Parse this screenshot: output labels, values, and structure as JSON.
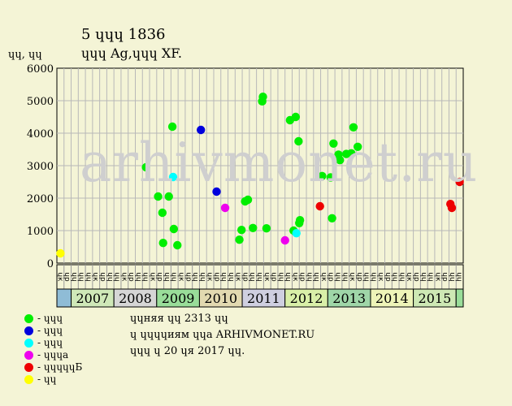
{
  "title": "5 ɥɥɥ 1836",
  "subtitle": "ɥɥɥ Ag,ɥɥɥ XF.",
  "watermark": "arhivmonet.ru",
  "notes": {
    "line1": "ɥɥняя ɥɥ 2313 ɥɥ",
    "line2": "ɥ ɥɥɥɥиям ɥɥа ARHIVMONET.RU",
    "line3": "ɥɥɥ ɥ 20 ɥя 2017 ɥɥ."
  },
  "legend": [
    {
      "label": "- ɥɥɥ",
      "color": "#00ee00"
    },
    {
      "label": "- ɥɥɥ",
      "color": "#0000dd"
    },
    {
      "label": "- ɥɥɥ",
      "color": "#00ffff"
    },
    {
      "label": "- ɥɥɥа",
      "color": "#ee00ee"
    },
    {
      "label": "- ɥɥɥɥɥБ",
      "color": "#ee0000"
    },
    {
      "label": "- ɥɥ",
      "color": "#ffff00"
    }
  ],
  "chart_data": {
    "type": "scatter",
    "title": "5 ɥɥɥ 1836",
    "ylabel": "ɥɥ, ɥɥ",
    "ylim": [
      0,
      6000
    ],
    "yticks": [
      0,
      1000,
      2000,
      3000,
      4000,
      5000,
      6000
    ],
    "grid": true,
    "slot_labels": [
      "ɥк",
      "ɥр",
      "ɥɥ",
      "ɥɥ",
      "ɥɥ",
      "ɥк",
      "ɥр",
      "ɥɥ",
      "ɥɥ",
      "ɥк",
      "ɥр",
      "ɥɥ",
      "ɥɥ",
      "ɥк",
      "ɥр",
      "ɥɥ",
      "ɥɥ",
      "ɥк",
      "ɥр",
      "ɥɥ",
      "ɥɥ",
      "ɥк",
      "ɥр",
      "ɥɥ",
      "ɥɥ",
      "ɥк",
      "ɥр",
      "ɥɥ",
      "ɥɥ",
      "ɥк",
      "ɥр",
      "ɥɥ",
      "ɥɥ",
      "ɥк",
      "ɥр",
      "ɥɥ",
      "ɥɥ",
      "ɥк",
      "ɥр",
      "ɥɥ",
      "ɥɥ",
      "ɥк",
      "ɥр",
      "ɥɥ",
      "ɥɥ",
      "ɥк",
      "ɥр",
      "ɥɥ",
      "ɥɥ",
      "ɥк",
      "ɥр",
      "ɥɥ",
      "ɥɥ",
      "ɥк",
      "ɥр",
      "ɥɥ",
      "ɥɥ"
    ],
    "years": [
      {
        "label": "2007",
        "color": "#cfe8b8"
      },
      {
        "label": "2008",
        "color": "#d6d6d6"
      },
      {
        "label": "2009",
        "color": "#99dd99"
      },
      {
        "label": "2010",
        "color": "#e2d9b0"
      },
      {
        "label": "2011",
        "color": "#cfcfe0"
      },
      {
        "label": "2012",
        "color": "#d9efa8"
      },
      {
        "label": "2013",
        "color": "#9fd6a8"
      },
      {
        "label": "2014",
        "color": "#eef4b8"
      },
      {
        "label": "2015",
        "color": "#cde8b4"
      }
    ],
    "points": [
      {
        "slot": 0.5,
        "value": 300,
        "grade": "yellow"
      },
      {
        "slot": 12.5,
        "value": 2950,
        "grade": "green"
      },
      {
        "slot": 14.2,
        "value": 2050,
        "grade": "green"
      },
      {
        "slot": 14.8,
        "value": 1550,
        "grade": "green"
      },
      {
        "slot": 14.9,
        "value": 620,
        "grade": "green"
      },
      {
        "slot": 15.7,
        "value": 2050,
        "grade": "green"
      },
      {
        "slot": 16.2,
        "value": 4200,
        "grade": "green"
      },
      {
        "slot": 16.3,
        "value": 2650,
        "grade": "cyan"
      },
      {
        "slot": 16.4,
        "value": 1050,
        "grade": "green"
      },
      {
        "slot": 16.9,
        "value": 550,
        "grade": "green"
      },
      {
        "slot": 20.2,
        "value": 4100,
        "grade": "blue"
      },
      {
        "slot": 22.4,
        "value": 2200,
        "grade": "blue"
      },
      {
        "slot": 23.6,
        "value": 1700,
        "grade": "magenta"
      },
      {
        "slot": 25.6,
        "value": 720,
        "grade": "green"
      },
      {
        "slot": 25.9,
        "value": 1020,
        "grade": "green"
      },
      {
        "slot": 26.4,
        "value": 1900,
        "grade": "green"
      },
      {
        "slot": 26.8,
        "value": 1950,
        "grade": "green"
      },
      {
        "slot": 27.5,
        "value": 1080,
        "grade": "green"
      },
      {
        "slot": 28.8,
        "value": 4980,
        "grade": "green"
      },
      {
        "slot": 28.9,
        "value": 5120,
        "grade": "green"
      },
      {
        "slot": 29.4,
        "value": 1070,
        "grade": "green"
      },
      {
        "slot": 32.0,
        "value": 700,
        "grade": "magenta"
      },
      {
        "slot": 32.7,
        "value": 4400,
        "grade": "green"
      },
      {
        "slot": 33.2,
        "value": 1000,
        "grade": "green"
      },
      {
        "slot": 33.5,
        "value": 4500,
        "grade": "green"
      },
      {
        "slot": 33.6,
        "value": 920,
        "grade": "cyan"
      },
      {
        "slot": 33.9,
        "value": 3750,
        "grade": "green"
      },
      {
        "slot": 34.0,
        "value": 1230,
        "grade": "green"
      },
      {
        "slot": 34.1,
        "value": 1320,
        "grade": "green"
      },
      {
        "slot": 36.9,
        "value": 1750,
        "grade": "red"
      },
      {
        "slot": 37.2,
        "value": 2680,
        "grade": "green"
      },
      {
        "slot": 38.4,
        "value": 2640,
        "grade": "green"
      },
      {
        "slot": 38.6,
        "value": 1380,
        "grade": "green"
      },
      {
        "slot": 38.8,
        "value": 3680,
        "grade": "green"
      },
      {
        "slot": 39.5,
        "value": 3340,
        "grade": "green"
      },
      {
        "slot": 39.7,
        "value": 3170,
        "grade": "green"
      },
      {
        "slot": 40.6,
        "value": 3360,
        "grade": "green"
      },
      {
        "slot": 41.3,
        "value": 3380,
        "grade": "green"
      },
      {
        "slot": 41.6,
        "value": 4180,
        "grade": "green"
      },
      {
        "slot": 42.2,
        "value": 3580,
        "grade": "green"
      },
      {
        "slot": 55.2,
        "value": 1820,
        "grade": "red"
      },
      {
        "slot": 55.4,
        "value": 1700,
        "grade": "red"
      },
      {
        "slot": 56.5,
        "value": 2500,
        "grade": "red"
      }
    ]
  }
}
